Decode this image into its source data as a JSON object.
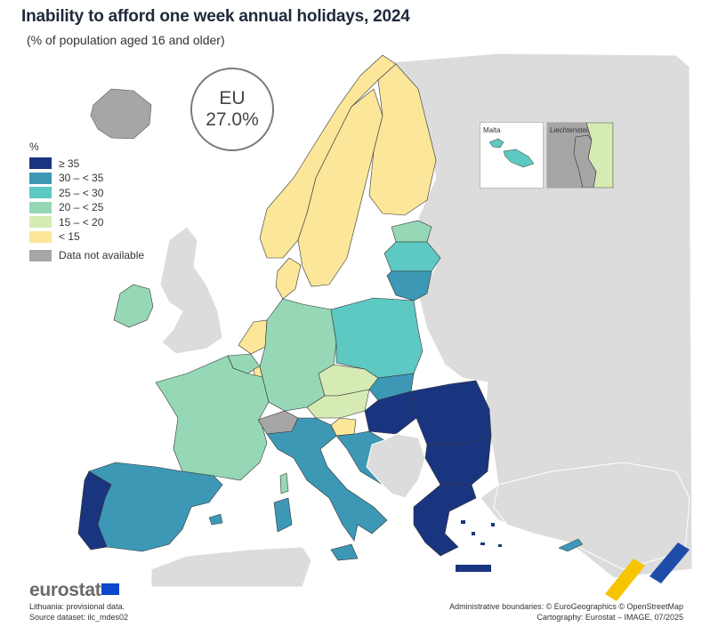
{
  "title": "Inability to afford one week annual holidays, 2024",
  "subtitle": "(% of population aged 16 and older)",
  "eu_badge": {
    "label": "EU",
    "value": "27.0%"
  },
  "legend": {
    "unit": "%",
    "classes": [
      {
        "label": "≥ 35",
        "color": "#1a3580"
      },
      {
        "label": "30 – < 35",
        "color": "#3d98b5"
      },
      {
        "label": "25 – < 30",
        "color": "#5ec8c2"
      },
      {
        "label": "20 – < 25",
        "color": "#96d8b6"
      },
      {
        "label": "15 – < 20",
        "color": "#d6ebb3"
      },
      {
        "label": "< 15",
        "color": "#fbe69a"
      }
    ],
    "not_available": {
      "label": "Data not available",
      "color": "#a6a6a6"
    }
  },
  "insets": {
    "malta": "Malta",
    "liechtenstein": "Liechtenstein"
  },
  "footer": {
    "logo": "eurostat",
    "note": "Lithuania: provisional data.",
    "source": "Source dataset: ilc_mdes02",
    "boundaries": "Administrative boundaries: © EuroGeographics © OpenStreetMap",
    "cartography": "Cartography: Eurostat – IMAGE, 07/2025"
  },
  "colors": {
    "background_land": "#dcdcdc",
    "na": "#a6a6a6",
    "border": "#333333",
    "c35": "#1a3580",
    "c30": "#3d98b5",
    "c25": "#5ec8c2",
    "c20": "#96d8b6",
    "c15": "#d6ebb3",
    "c0": "#fbe69a"
  },
  "map_classes": {
    "Portugal": "≥ 35",
    "Spain": "30 – < 35",
    "France": "20 – < 25",
    "Ireland": "20 – < 25",
    "Belgium": "20 – < 25",
    "Netherlands": "< 15",
    "Luxembourg": "< 15",
    "Germany": "20 – < 25",
    "Switzerland": "Data not available",
    "Italy": "30 – < 35",
    "Austria": "15 – < 20",
    "Czechia": "15 – < 20",
    "Slovenia": "< 15",
    "Croatia": "30 – < 35",
    "Slovakia": "30 – < 35",
    "Hungary": "≥ 35",
    "Poland": "25 – < 30",
    "Lithuania": "30 – < 35",
    "Latvia": "25 – < 30",
    "Estonia": "20 – < 25",
    "Denmark": "< 15",
    "Norway": "< 15",
    "Sweden": "< 15",
    "Finland": "< 15",
    "Romania": "≥ 35",
    "Bulgaria": "≥ 35",
    "Greece": "≥ 35",
    "Cyprus": "30 – < 35",
    "Malta": "25 – < 30",
    "Iceland": "Data not available",
    "United Kingdom": "Data not available",
    "Serbia": "Data not available",
    "Liechtenstein": "20 – < 25"
  }
}
